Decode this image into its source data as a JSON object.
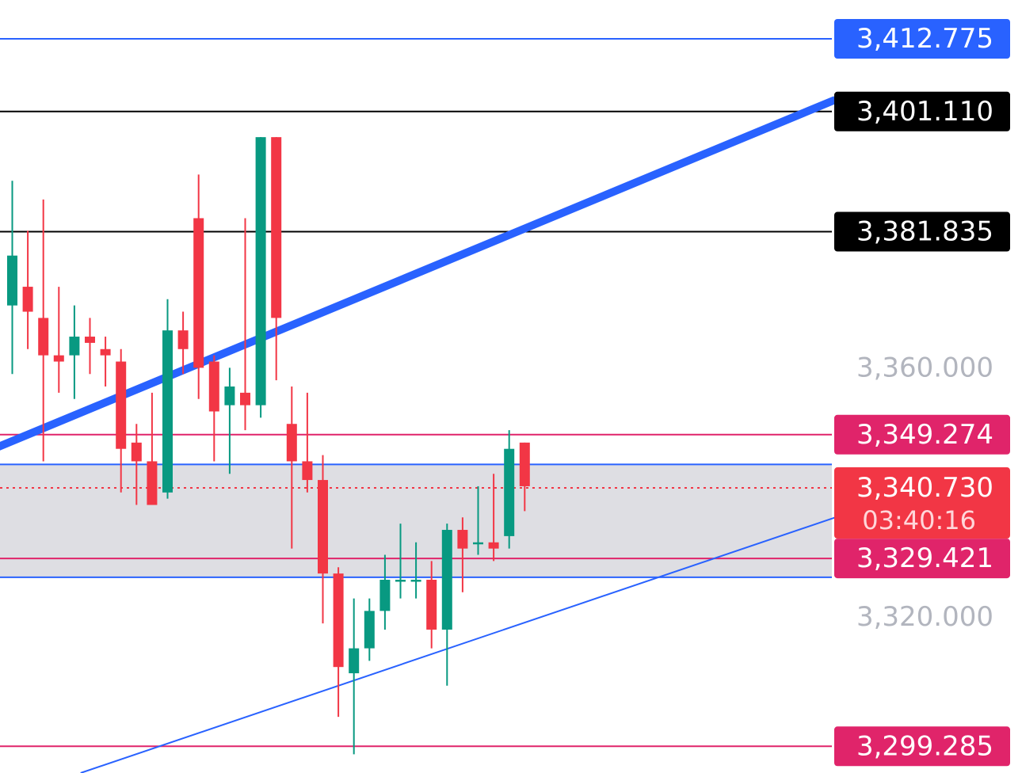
{
  "chart_data": {
    "type": "candlestick",
    "title": "",
    "xlabel": "",
    "ylabel": "",
    "ylim": [
      3295.0,
      3419.0
    ],
    "price_ticks": [
      "3,360.000",
      "3,320.000"
    ],
    "price_tick_values": [
      3360.0,
      3320.0
    ],
    "candles": [
      {
        "o": 3370.0,
        "h": 3390.0,
        "l": 3359.0,
        "c": 3378.0
      },
      {
        "o": 3373.0,
        "h": 3382.0,
        "l": 3363.0,
        "c": 3369.0
      },
      {
        "o": 3368.0,
        "h": 3387.0,
        "l": 3345.0,
        "c": 3362.0
      },
      {
        "o": 3362.0,
        "h": 3373.0,
        "l": 3356.0,
        "c": 3361.0
      },
      {
        "o": 3362.0,
        "h": 3370.0,
        "l": 3355.0,
        "c": 3365.0
      },
      {
        "o": 3365.0,
        "h": 3368.0,
        "l": 3359.0,
        "c": 3364.0
      },
      {
        "o": 3363.0,
        "h": 3365.0,
        "l": 3357.0,
        "c": 3362.0
      },
      {
        "o": 3361.0,
        "h": 3363.0,
        "l": 3340.0,
        "c": 3347.0
      },
      {
        "o": 3348.0,
        "h": 3351.0,
        "l": 3338.0,
        "c": 3345.0
      },
      {
        "o": 3345.0,
        "h": 3356.0,
        "l": 3339.0,
        "c": 3338.0
      },
      {
        "o": 3340.0,
        "h": 3371.0,
        "l": 3339.0,
        "c": 3366.0
      },
      {
        "o": 3366.0,
        "h": 3369.0,
        "l": 3359.0,
        "c": 3363.0
      },
      {
        "o": 3384.0,
        "h": 3391.0,
        "l": 3355.0,
        "c": 3360.0
      },
      {
        "o": 3361.0,
        "h": 3362.0,
        "l": 3345.0,
        "c": 3353.0
      },
      {
        "o": 3354.0,
        "h": 3360.0,
        "l": 3343.0,
        "c": 3357.0
      },
      {
        "o": 3356.0,
        "h": 3384.0,
        "l": 3350.0,
        "c": 3354.0
      },
      {
        "o": 3354.0,
        "h": 3397.0,
        "l": 3352.0,
        "c": 3397.0
      },
      {
        "o": 3397.0,
        "h": 3396.0,
        "l": 3358.0,
        "c": 3368.0
      },
      {
        "o": 3351.0,
        "h": 3357.0,
        "l": 3331.0,
        "c": 3345.0
      },
      {
        "o": 3345.0,
        "h": 3356.0,
        "l": 3340.0,
        "c": 3342.0
      },
      {
        "o": 3342.0,
        "h": 3346.0,
        "l": 3319.0,
        "c": 3327.0
      },
      {
        "o": 3327.0,
        "h": 3328.0,
        "l": 3304.0,
        "c": 3312.0
      },
      {
        "o": 3311.0,
        "h": 3323.0,
        "l": 3298.0,
        "c": 3315.0
      },
      {
        "o": 3315.0,
        "h": 3323.0,
        "l": 3313.0,
        "c": 3321.0
      },
      {
        "o": 3321.0,
        "h": 3330.0,
        "l": 3318.0,
        "c": 3326.0
      },
      {
        "o": 3326.0,
        "h": 3335.0,
        "l": 3323.0,
        "c": 3326.0
      },
      {
        "o": 3326.0,
        "h": 3332.0,
        "l": 3323.0,
        "c": 3326.0
      },
      {
        "o": 3326.0,
        "h": 3329.0,
        "l": 3315.0,
        "c": 3318.0
      },
      {
        "o": 3318.0,
        "h": 3335.0,
        "l": 3309.0,
        "c": 3334.0
      },
      {
        "o": 3334.0,
        "h": 3336.0,
        "l": 3324.0,
        "c": 3331.0
      },
      {
        "o": 3332.0,
        "h": 3341.0,
        "l": 3330.0,
        "c": 3332.0
      },
      {
        "o": 3332.0,
        "h": 3343.0,
        "l": 3329.0,
        "c": 3331.0
      },
      {
        "o": 3333.0,
        "h": 3350.0,
        "l": 3331.0,
        "c": 3347.0
      },
      {
        "o": 3348.0,
        "h": 3348.0,
        "l": 3337.0,
        "c": 3341.0
      }
    ],
    "horizontal_levels": [
      {
        "name": "level-3412",
        "value": 3412.775,
        "label": "3,412.775",
        "color": "#2962ff",
        "label_bg": "#2962ff",
        "label_color": "#ffffff"
      },
      {
        "name": "level-3401",
        "value": 3401.11,
        "label": "3,401.110",
        "color": "#000000",
        "label_bg": "#000000",
        "label_color": "#ffffff"
      },
      {
        "name": "level-3381",
        "value": 3381.835,
        "label": "3,381.835",
        "color": "#000000",
        "label_bg": "#000000",
        "label_color": "#ffffff"
      },
      {
        "name": "level-3349",
        "value": 3349.274,
        "label": "3,349.274",
        "color": "#e0246a",
        "label_bg": "#e0246a",
        "label_color": "#ffffff"
      },
      {
        "name": "level-3329",
        "value": 3329.421,
        "label": "3,329.421",
        "color": "#e0246a",
        "label_bg": "#e0246a",
        "label_color": "#ffffff"
      },
      {
        "name": "level-3299",
        "value": 3299.285,
        "label": "3,299.285",
        "color": "#e0246a",
        "label_bg": "#e0246a",
        "label_color": "#ffffff"
      }
    ],
    "zone": {
      "top": 3344.5,
      "bottom": 3326.4,
      "color": "#dedee3",
      "border": "#2962ff"
    },
    "current_price": {
      "value": 3340.73,
      "label": "3,340.730",
      "countdown": "03:40:16",
      "color": "#f23645"
    },
    "trendlines": [
      {
        "name": "upper-trendline",
        "start": {
          "bar": -1.4,
          "price": 3346.8
        },
        "end": {
          "bar": 53.0,
          "price": 3403.0
        },
        "color": "#2962ff",
        "width": "thick"
      },
      {
        "name": "lower-trendline",
        "start": {
          "bar": 4.4,
          "price": 3295.0
        },
        "end": {
          "bar": 53.0,
          "price": 3336.0
        },
        "color": "#2962ff",
        "width": "thin"
      }
    ],
    "colors": {
      "up": "#089981",
      "down": "#f23645",
      "axis_text": "#b2b5be"
    }
  }
}
